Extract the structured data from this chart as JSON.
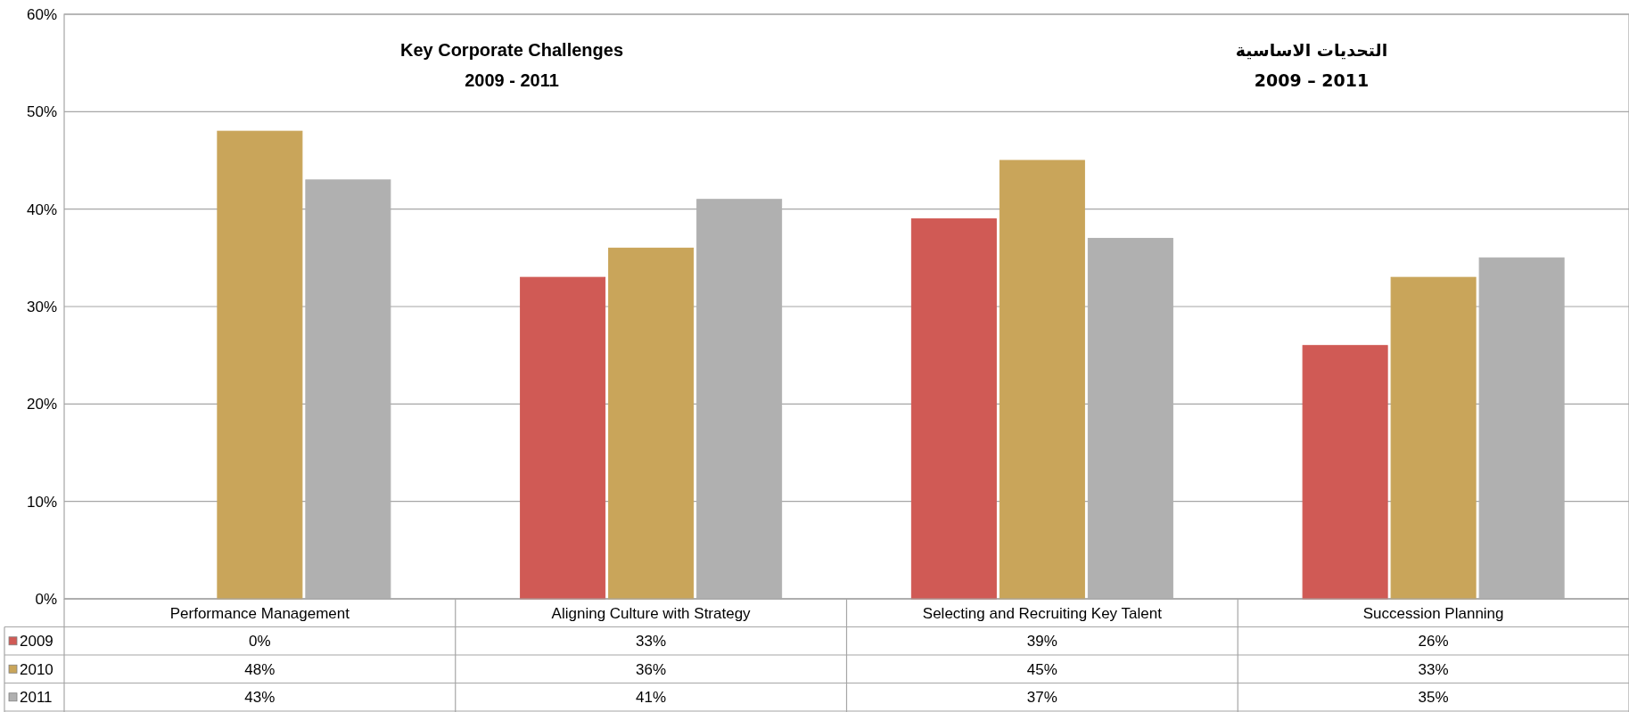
{
  "chart_data": {
    "type": "bar",
    "title": "Key Corporate Challenges",
    "subtitle": "2009 - 2011",
    "annotations": [
      "التحديات  الاساسية",
      "2009 – 2011"
    ],
    "categories": [
      "Performance Management",
      "Aligning Culture with Strategy",
      "Selecting and Recruiting Key Talent",
      "Succession Planning"
    ],
    "series": [
      {
        "name": "2009",
        "color": "#d05a55",
        "values": [
          0,
          33,
          39,
          26
        ],
        "value_labels": [
          "0%",
          "33%",
          "39%",
          "26%"
        ]
      },
      {
        "name": "2010",
        "color": "#c9a55a",
        "values": [
          48,
          36,
          45,
          33
        ],
        "value_labels": [
          "48%",
          "36%",
          "45%",
          "33%"
        ]
      },
      {
        "name": "2011",
        "color": "#b0b0b0",
        "values": [
          43,
          41,
          37,
          35
        ],
        "value_labels": [
          "43%",
          "41%",
          "37%",
          "35%"
        ]
      }
    ],
    "ylim": [
      0,
      60
    ],
    "yticks": [
      {
        "value": 0,
        "label": "0%"
      },
      {
        "value": 10,
        "label": "10%"
      },
      {
        "value": 20,
        "label": "20%"
      },
      {
        "value": 30,
        "label": "30%"
      },
      {
        "value": 40,
        "label": "40%"
      },
      {
        "value": 50,
        "label": "50%"
      },
      {
        "value": 60,
        "label": "60%"
      }
    ],
    "grid": "y",
    "legend": "bottom"
  }
}
